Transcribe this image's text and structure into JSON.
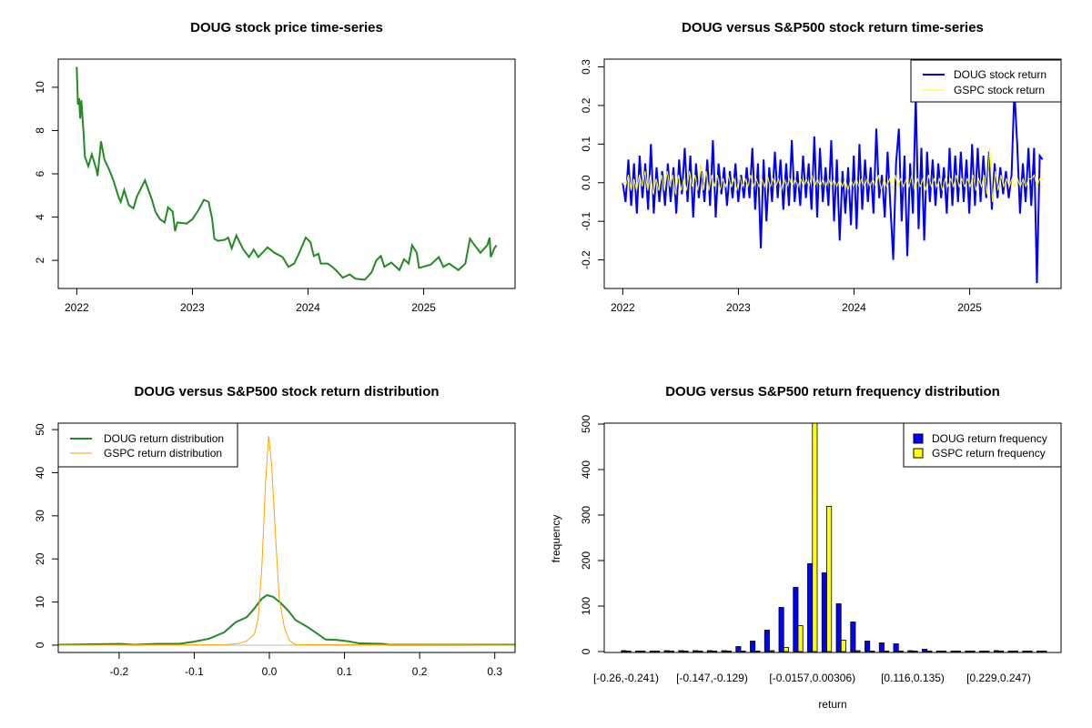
{
  "chart_data": [
    {
      "type": "line",
      "title": "DOUG stock price time-series",
      "xlabel": "",
      "ylabel": "",
      "x_ticks": [
        "2022",
        "2023",
        "2024",
        "2025"
      ],
      "y_ticks": [
        "2",
        "4",
        "6",
        "8",
        "10"
      ],
      "xlim": [
        2021.84,
        2025.79
      ],
      "ylim": [
        0.7,
        11.3
      ],
      "color": "#228B22",
      "series": [
        {
          "name": "DOUG price",
          "x": [
            2022.0,
            2022.01,
            2022.02,
            2022.03,
            2022.04,
            2022.06,
            2022.07,
            2022.1,
            2022.13,
            2022.17,
            2022.18,
            2022.21,
            2022.24,
            2022.28,
            2022.32,
            2022.36,
            2022.38,
            2022.41,
            2022.45,
            2022.49,
            2022.52,
            2022.59,
            2022.61,
            2022.65,
            2022.68,
            2022.72,
            2022.76,
            2022.79,
            2022.83,
            2022.85,
            2022.87,
            2022.95,
            2023.0,
            2023.05,
            2023.1,
            2023.14,
            2023.17,
            2023.19,
            2023.22,
            2023.28,
            2023.31,
            2023.34,
            2023.38,
            2023.44,
            2023.49,
            2023.53,
            2023.57,
            2023.65,
            2023.71,
            2023.78,
            2023.83,
            2023.88,
            2023.92,
            2023.98,
            2024.02,
            2024.05,
            2024.09,
            2024.11,
            2024.17,
            2024.21,
            2024.25,
            2024.3,
            2024.36,
            2024.41,
            2024.49,
            2024.55,
            2024.59,
            2024.63,
            2024.66,
            2024.72,
            2024.79,
            2024.83,
            2024.87,
            2024.9,
            2024.94,
            2024.96,
            2025.06,
            2025.13,
            2025.17,
            2025.22,
            2025.3,
            2025.36,
            2025.4,
            2025.44,
            2025.49,
            2025.55,
            2025.57,
            2025.58,
            2025.61,
            2025.63
          ],
          "y": [
            10.94,
            9.2,
            9.5,
            8.55,
            9.4,
            7.8,
            6.8,
            6.35,
            6.9,
            6.2,
            5.9,
            7.5,
            6.65,
            6.2,
            5.65,
            4.95,
            4.7,
            5.25,
            4.55,
            4.4,
            4.95,
            5.7,
            5.4,
            4.8,
            4.25,
            3.9,
            3.75,
            4.45,
            4.25,
            3.35,
            3.75,
            3.7,
            3.9,
            4.3,
            4.8,
            4.7,
            3.95,
            3.0,
            2.9,
            2.95,
            3.05,
            2.55,
            3.15,
            2.5,
            2.15,
            2.5,
            2.15,
            2.6,
            2.35,
            2.15,
            1.7,
            1.85,
            2.3,
            3.05,
            2.85,
            2.2,
            2.3,
            1.85,
            1.85,
            1.7,
            1.5,
            1.2,
            1.35,
            1.15,
            1.1,
            1.45,
            2.0,
            2.2,
            1.7,
            1.9,
            1.55,
            2.05,
            1.85,
            2.7,
            2.35,
            1.65,
            1.8,
            2.15,
            1.7,
            1.85,
            1.55,
            1.85,
            3.0,
            2.7,
            2.35,
            2.7,
            3.05,
            2.15,
            2.55,
            2.7
          ]
        }
      ]
    },
    {
      "type": "line",
      "title": "DOUG versus S&P500 stock return time-series",
      "x_ticks": [
        "2022",
        "2023",
        "2024",
        "2025"
      ],
      "y_ticks": [
        "-0.2",
        "-0.1",
        "0.0",
        "0.1",
        "0.2",
        "0.3"
      ],
      "xlim": [
        2021.84,
        2025.79
      ],
      "ylim": [
        -0.274,
        0.32
      ],
      "legend_position": "top-right",
      "x_start": 2022.0,
      "x_end": 2025.63,
      "series": [
        {
          "name": "DOUG stock return",
          "color": "#0000FF",
          "values": [
            0,
            -0.05,
            0.06,
            -0.06,
            0.05,
            -0.08,
            0.07,
            -0.04,
            0.05,
            -0.07,
            0.1,
            -0.08,
            0.04,
            -0.05,
            0.03,
            -0.06,
            0.05,
            -0.05,
            0.04,
            -0.08,
            0.06,
            -0.03,
            0.09,
            -0.05,
            0.07,
            -0.09,
            0.05,
            -0.04,
            0.03,
            -0.05,
            0.06,
            -0.06,
            0.11,
            -0.09,
            0.05,
            -0.03,
            0.04,
            -0.06,
            0.03,
            -0.04,
            0.05,
            -0.05,
            0.02,
            -0.04,
            0.04,
            -0.04,
            0.09,
            -0.07,
            0.05,
            -0.17,
            0.06,
            -0.1,
            0.04,
            -0.05,
            0.08,
            -0.04,
            0.06,
            -0.07,
            0.05,
            -0.06,
            0.11,
            -0.05,
            0.03,
            -0.06,
            0.07,
            -0.04,
            0.05,
            -0.07,
            0.12,
            -0.09,
            0.09,
            -0.05,
            0.04,
            -0.06,
            0.11,
            -0.1,
            0.06,
            -0.15,
            0.03,
            -0.08,
            0.04,
            -0.11,
            0.07,
            -0.12,
            0.1,
            -0.07,
            0.06,
            -0.05,
            0.04,
            -0.08,
            0.14,
            -0.04,
            0.02,
            -0.09,
            0.08,
            -0.06,
            -0.2,
            0.05,
            0.14,
            -0.1,
            0.07,
            -0.19,
            0.05,
            -0.08,
            0.23,
            -0.12,
            0.09,
            -0.15,
            0.08,
            -0.05,
            0.06,
            -0.06,
            0.05,
            -0.04,
            0.04,
            -0.08,
            0.09,
            -0.06,
            0.07,
            -0.05,
            0.08,
            -0.05,
            0.06,
            -0.08,
            0.1,
            -0.06,
            0.09,
            -0.05,
            0.07,
            -0.04,
            0.08,
            -0.07,
            0.05,
            -0.04,
            0.04,
            -0.03,
            0.03,
            -0.04,
            0.02,
            0.24,
            0.1,
            -0.08,
            0.05,
            -0.05,
            0.09,
            -0.06,
            0.09,
            -0.26,
            0.07,
            0.06
          ]
        },
        {
          "name": "GSPC stock return",
          "color": "#FFFF00",
          "values": [
            0,
            -0.01,
            0.02,
            -0.02,
            0.01,
            -0.02,
            0.02,
            -0.01,
            0.03,
            -0.02,
            0.02,
            -0.03,
            0.01,
            -0.02,
            0.02,
            -0.02,
            0.03,
            -0.01,
            0.02,
            -0.03,
            0.02,
            -0.02,
            0.01,
            -0.02,
            0.03,
            -0.01,
            0.02,
            -0.02,
            0.05,
            -0.02,
            0.03,
            -0.02,
            0.02,
            -0.01,
            0.02,
            -0.02,
            0.01,
            -0.01,
            0.02,
            -0.01,
            0.01,
            -0.02,
            0.02,
            -0.01,
            0.01,
            -0.01,
            0.02,
            -0.01,
            0.01,
            -0.01,
            0.01,
            -0.01,
            0.02,
            -0.01,
            0.01,
            -0.01,
            0.01,
            -0.02,
            0.01,
            -0.01,
            0.01,
            -0.01,
            0.01,
            -0.01,
            0.01,
            -0.01,
            0.01,
            -0.01,
            0.02,
            -0.01,
            0.01,
            -0.01,
            0.01,
            -0.01,
            0.01,
            -0.01,
            0.01,
            -0.01,
            0.01,
            -0.01,
            0.01,
            -0.02,
            0.01,
            -0.01,
            0.01,
            -0.01,
            0.01,
            -0.01,
            0.01,
            -0.01,
            0.01,
            -0.01,
            0.02,
            -0.02,
            0.01,
            -0.01,
            0.01,
            -0.02,
            0.02,
            -0.01,
            0.01,
            -0.01,
            0.01,
            -0.01,
            0.02,
            -0.02,
            0.01,
            -0.01,
            0.01,
            -0.02,
            0.02,
            -0.01,
            0.01,
            -0.01,
            0.01,
            -0.02,
            0.01,
            -0.01,
            0.01,
            -0.01,
            0.02,
            -0.01,
            0.01,
            -0.01,
            0.01,
            -0.01,
            0.02,
            -0.02,
            0.01,
            -0.01,
            0.02,
            -0.03,
            0.09,
            -0.05,
            0.03,
            -0.02,
            0.02,
            -0.01,
            0.01,
            -0.01,
            0.01,
            -0.01,
            0.01,
            -0.01,
            0.01,
            -0.01,
            0.01,
            0.01,
            0.02,
            -0.01,
            0.01,
            0.01
          ]
        }
      ]
    },
    {
      "type": "line",
      "title": "DOUG versus S&P500 stock return distribution",
      "x_ticks": [
        "-0.2",
        "-0.1",
        "0.0",
        "0.1",
        "0.2",
        "0.3"
      ],
      "y_ticks": [
        "0",
        "10",
        "20",
        "30",
        "40",
        "50"
      ],
      "xlim": [
        -0.281,
        0.327
      ],
      "ylim": [
        -1.7,
        51.5
      ],
      "legend_position": "top-left",
      "baseline_color": "#BEBEBE",
      "series": [
        {
          "name": "DOUG return distribution",
          "color": "#228B22",
          "x": [
            -0.28,
            -0.2,
            -0.18,
            -0.15,
            -0.12,
            -0.1,
            -0.08,
            -0.06,
            -0.045,
            -0.03,
            -0.02,
            -0.01,
            -0.003,
            0.005,
            0.015,
            0.025,
            0.035,
            0.05,
            0.065,
            0.075,
            0.09,
            0.105,
            0.12,
            0.15,
            0.16,
            0.33
          ],
          "y": [
            0.1,
            0.3,
            0.1,
            0.3,
            0.3,
            0.8,
            1.5,
            3,
            5.3,
            6.5,
            8.5,
            10.8,
            11.6,
            11.2,
            9.8,
            8,
            5.8,
            4.3,
            2.5,
            1.3,
            1.2,
            0.9,
            0.4,
            0.3,
            0.1,
            0.1
          ]
        },
        {
          "name": "GSPC return distribution",
          "color": "#FFA500",
          "x": [
            -0.28,
            -0.06,
            -0.04,
            -0.03,
            -0.02,
            -0.015,
            -0.01,
            -0.005,
            -0.001,
            0.003,
            0.008,
            0.013,
            0.02,
            0.027,
            0.035,
            0.05,
            0.09,
            0.33
          ],
          "y": [
            0,
            0.1,
            0.4,
            1,
            2.5,
            6,
            18,
            38,
            48.5,
            42,
            26,
            11,
            4,
            1,
            0.1,
            0.15,
            0.1,
            0
          ]
        }
      ]
    },
    {
      "type": "bar",
      "title": "DOUG versus S&P500 return frequency distribution",
      "xlabel": "return",
      "ylabel": "frequency",
      "y_ticks": [
        "0",
        "100",
        "200",
        "300",
        "400",
        "500"
      ],
      "ylim": [
        0,
        502
      ],
      "legend_position": "top-right",
      "bin_count": 30,
      "x_tick_labels": [
        {
          "bin": 1,
          "label": "[-0.26,-0.241)"
        },
        {
          "bin": 7,
          "label": "[-0.147,-0.129)"
        },
        {
          "bin": 14,
          "label": "[-0.0157,0.00306)"
        },
        {
          "bin": 21,
          "label": "[0.116,0.135)"
        },
        {
          "bin": 27,
          "label": "[0.229,0.247)"
        }
      ],
      "series": [
        {
          "name": "DOUG return frequency",
          "color": "#0000FF",
          "values": [
            2,
            0,
            0,
            2,
            2,
            2,
            2,
            2,
            11,
            23,
            47,
            97,
            141,
            193,
            173,
            105,
            65,
            23,
            19,
            17,
            2,
            5,
            0,
            0,
            0,
            0,
            2,
            0,
            0,
            0
          ]
        },
        {
          "name": "GSPC return frequency",
          "color": "#FFFF00",
          "values": [
            0,
            0,
            0,
            0,
            0,
            0,
            0,
            0,
            0,
            0,
            2,
            9,
            57,
            520,
            319,
            25,
            2,
            0,
            0,
            0,
            0,
            0,
            0,
            0,
            0,
            0,
            0,
            0,
            0,
            0
          ]
        }
      ]
    }
  ]
}
